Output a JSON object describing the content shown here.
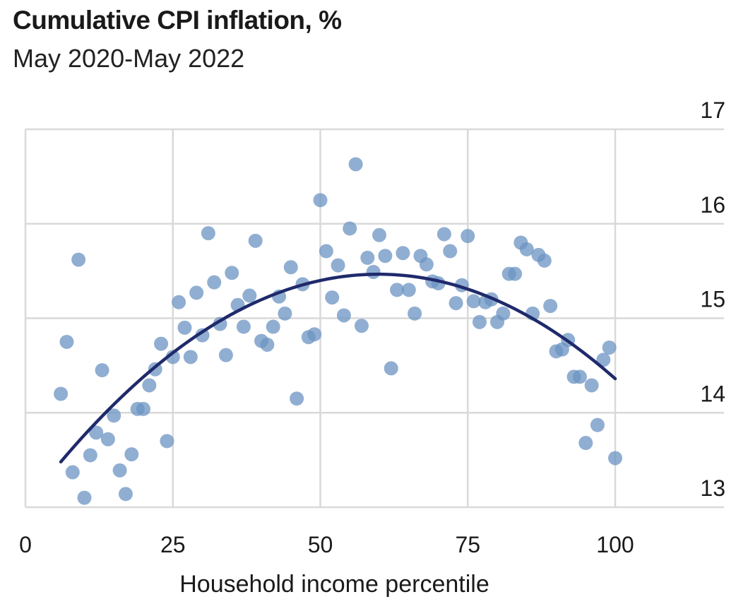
{
  "chart_data": {
    "type": "scatter",
    "title": "Cumulative CPI inflation, %",
    "subtitle": "May 2020-May 2022",
    "xlabel": "Household income percentile",
    "ylabel": "",
    "xlim": [
      0,
      120
    ],
    "ylim": [
      12.9,
      17
    ],
    "x_ticks": [
      0,
      25,
      50,
      75,
      100
    ],
    "y_ticks": [
      13,
      14,
      15,
      16,
      17
    ],
    "y_axis_position": "right",
    "grid": true,
    "colors": {
      "points": "#6b93c1",
      "fit": "#1f2a6b",
      "grid": "#d9d9d9"
    },
    "points": [
      {
        "x": 6,
        "y": 14.2
      },
      {
        "x": 7,
        "y": 14.75
      },
      {
        "x": 8,
        "y": 13.37
      },
      {
        "x": 9,
        "y": 15.62
      },
      {
        "x": 10,
        "y": 13.1
      },
      {
        "x": 11,
        "y": 13.55
      },
      {
        "x": 12,
        "y": 13.79
      },
      {
        "x": 13,
        "y": 14.45
      },
      {
        "x": 14,
        "y": 13.72
      },
      {
        "x": 15,
        "y": 13.97
      },
      {
        "x": 16,
        "y": 13.39
      },
      {
        "x": 17,
        "y": 13.14
      },
      {
        "x": 18,
        "y": 13.56
      },
      {
        "x": 19,
        "y": 14.04
      },
      {
        "x": 20,
        "y": 14.04
      },
      {
        "x": 21,
        "y": 14.29
      },
      {
        "x": 22,
        "y": 14.46
      },
      {
        "x": 23,
        "y": 14.73
      },
      {
        "x": 24,
        "y": 13.7
      },
      {
        "x": 25,
        "y": 14.59
      },
      {
        "x": 26,
        "y": 15.17
      },
      {
        "x": 27,
        "y": 14.9
      },
      {
        "x": 28,
        "y": 14.59
      },
      {
        "x": 29,
        "y": 15.27
      },
      {
        "x": 30,
        "y": 14.82
      },
      {
        "x": 31,
        "y": 15.9
      },
      {
        "x": 32,
        "y": 15.38
      },
      {
        "x": 33,
        "y": 14.94
      },
      {
        "x": 34,
        "y": 14.61
      },
      {
        "x": 35,
        "y": 15.48
      },
      {
        "x": 36,
        "y": 15.14
      },
      {
        "x": 37,
        "y": 14.91
      },
      {
        "x": 38,
        "y": 15.24
      },
      {
        "x": 39,
        "y": 15.82
      },
      {
        "x": 40,
        "y": 14.76
      },
      {
        "x": 41,
        "y": 14.72
      },
      {
        "x": 42,
        "y": 14.91
      },
      {
        "x": 43,
        "y": 15.23
      },
      {
        "x": 44,
        "y": 15.05
      },
      {
        "x": 45,
        "y": 15.54
      },
      {
        "x": 46,
        "y": 14.15
      },
      {
        "x": 47,
        "y": 15.36
      },
      {
        "x": 48,
        "y": 14.8
      },
      {
        "x": 49,
        "y": 14.83
      },
      {
        "x": 50,
        "y": 16.25
      },
      {
        "x": 51,
        "y": 15.71
      },
      {
        "x": 52,
        "y": 15.22
      },
      {
        "x": 53,
        "y": 15.56
      },
      {
        "x": 54,
        "y": 15.03
      },
      {
        "x": 55,
        "y": 15.95
      },
      {
        "x": 56,
        "y": 16.63
      },
      {
        "x": 57,
        "y": 14.92
      },
      {
        "x": 58,
        "y": 15.64
      },
      {
        "x": 59,
        "y": 15.49
      },
      {
        "x": 60,
        "y": 15.88
      },
      {
        "x": 61,
        "y": 15.66
      },
      {
        "x": 62,
        "y": 14.47
      },
      {
        "x": 63,
        "y": 15.3
      },
      {
        "x": 64,
        "y": 15.69
      },
      {
        "x": 65,
        "y": 15.3
      },
      {
        "x": 66,
        "y": 15.05
      },
      {
        "x": 67,
        "y": 15.66
      },
      {
        "x": 68,
        "y": 15.57
      },
      {
        "x": 69,
        "y": 15.39
      },
      {
        "x": 70,
        "y": 15.37
      },
      {
        "x": 71,
        "y": 15.89
      },
      {
        "x": 72,
        "y": 15.71
      },
      {
        "x": 73,
        "y": 15.16
      },
      {
        "x": 74,
        "y": 15.35
      },
      {
        "x": 75,
        "y": 15.87
      },
      {
        "x": 76,
        "y": 15.18
      },
      {
        "x": 77,
        "y": 14.96
      },
      {
        "x": 78,
        "y": 15.17
      },
      {
        "x": 79,
        "y": 15.2
      },
      {
        "x": 80,
        "y": 14.96
      },
      {
        "x": 81,
        "y": 15.05
      },
      {
        "x": 82,
        "y": 15.47
      },
      {
        "x": 83,
        "y": 15.47
      },
      {
        "x": 84,
        "y": 15.8
      },
      {
        "x": 85,
        "y": 15.73
      },
      {
        "x": 86,
        "y": 15.05
      },
      {
        "x": 87,
        "y": 15.67
      },
      {
        "x": 88,
        "y": 15.61
      },
      {
        "x": 89,
        "y": 15.13
      },
      {
        "x": 90,
        "y": 14.65
      },
      {
        "x": 91,
        "y": 14.67
      },
      {
        "x": 92,
        "y": 14.77
      },
      {
        "x": 93,
        "y": 14.38
      },
      {
        "x": 94,
        "y": 14.38
      },
      {
        "x": 95,
        "y": 13.68
      },
      {
        "x": 96,
        "y": 14.29
      },
      {
        "x": 97,
        "y": 13.87
      },
      {
        "x": 98,
        "y": 14.56
      },
      {
        "x": 99,
        "y": 14.69
      },
      {
        "x": 100,
        "y": 13.52
      }
    ],
    "fit_curve": {
      "type": "quadratic",
      "points": [
        [
          6,
          13.48
        ],
        [
          55,
          15.45
        ],
        [
          100,
          14.36
        ]
      ]
    }
  }
}
